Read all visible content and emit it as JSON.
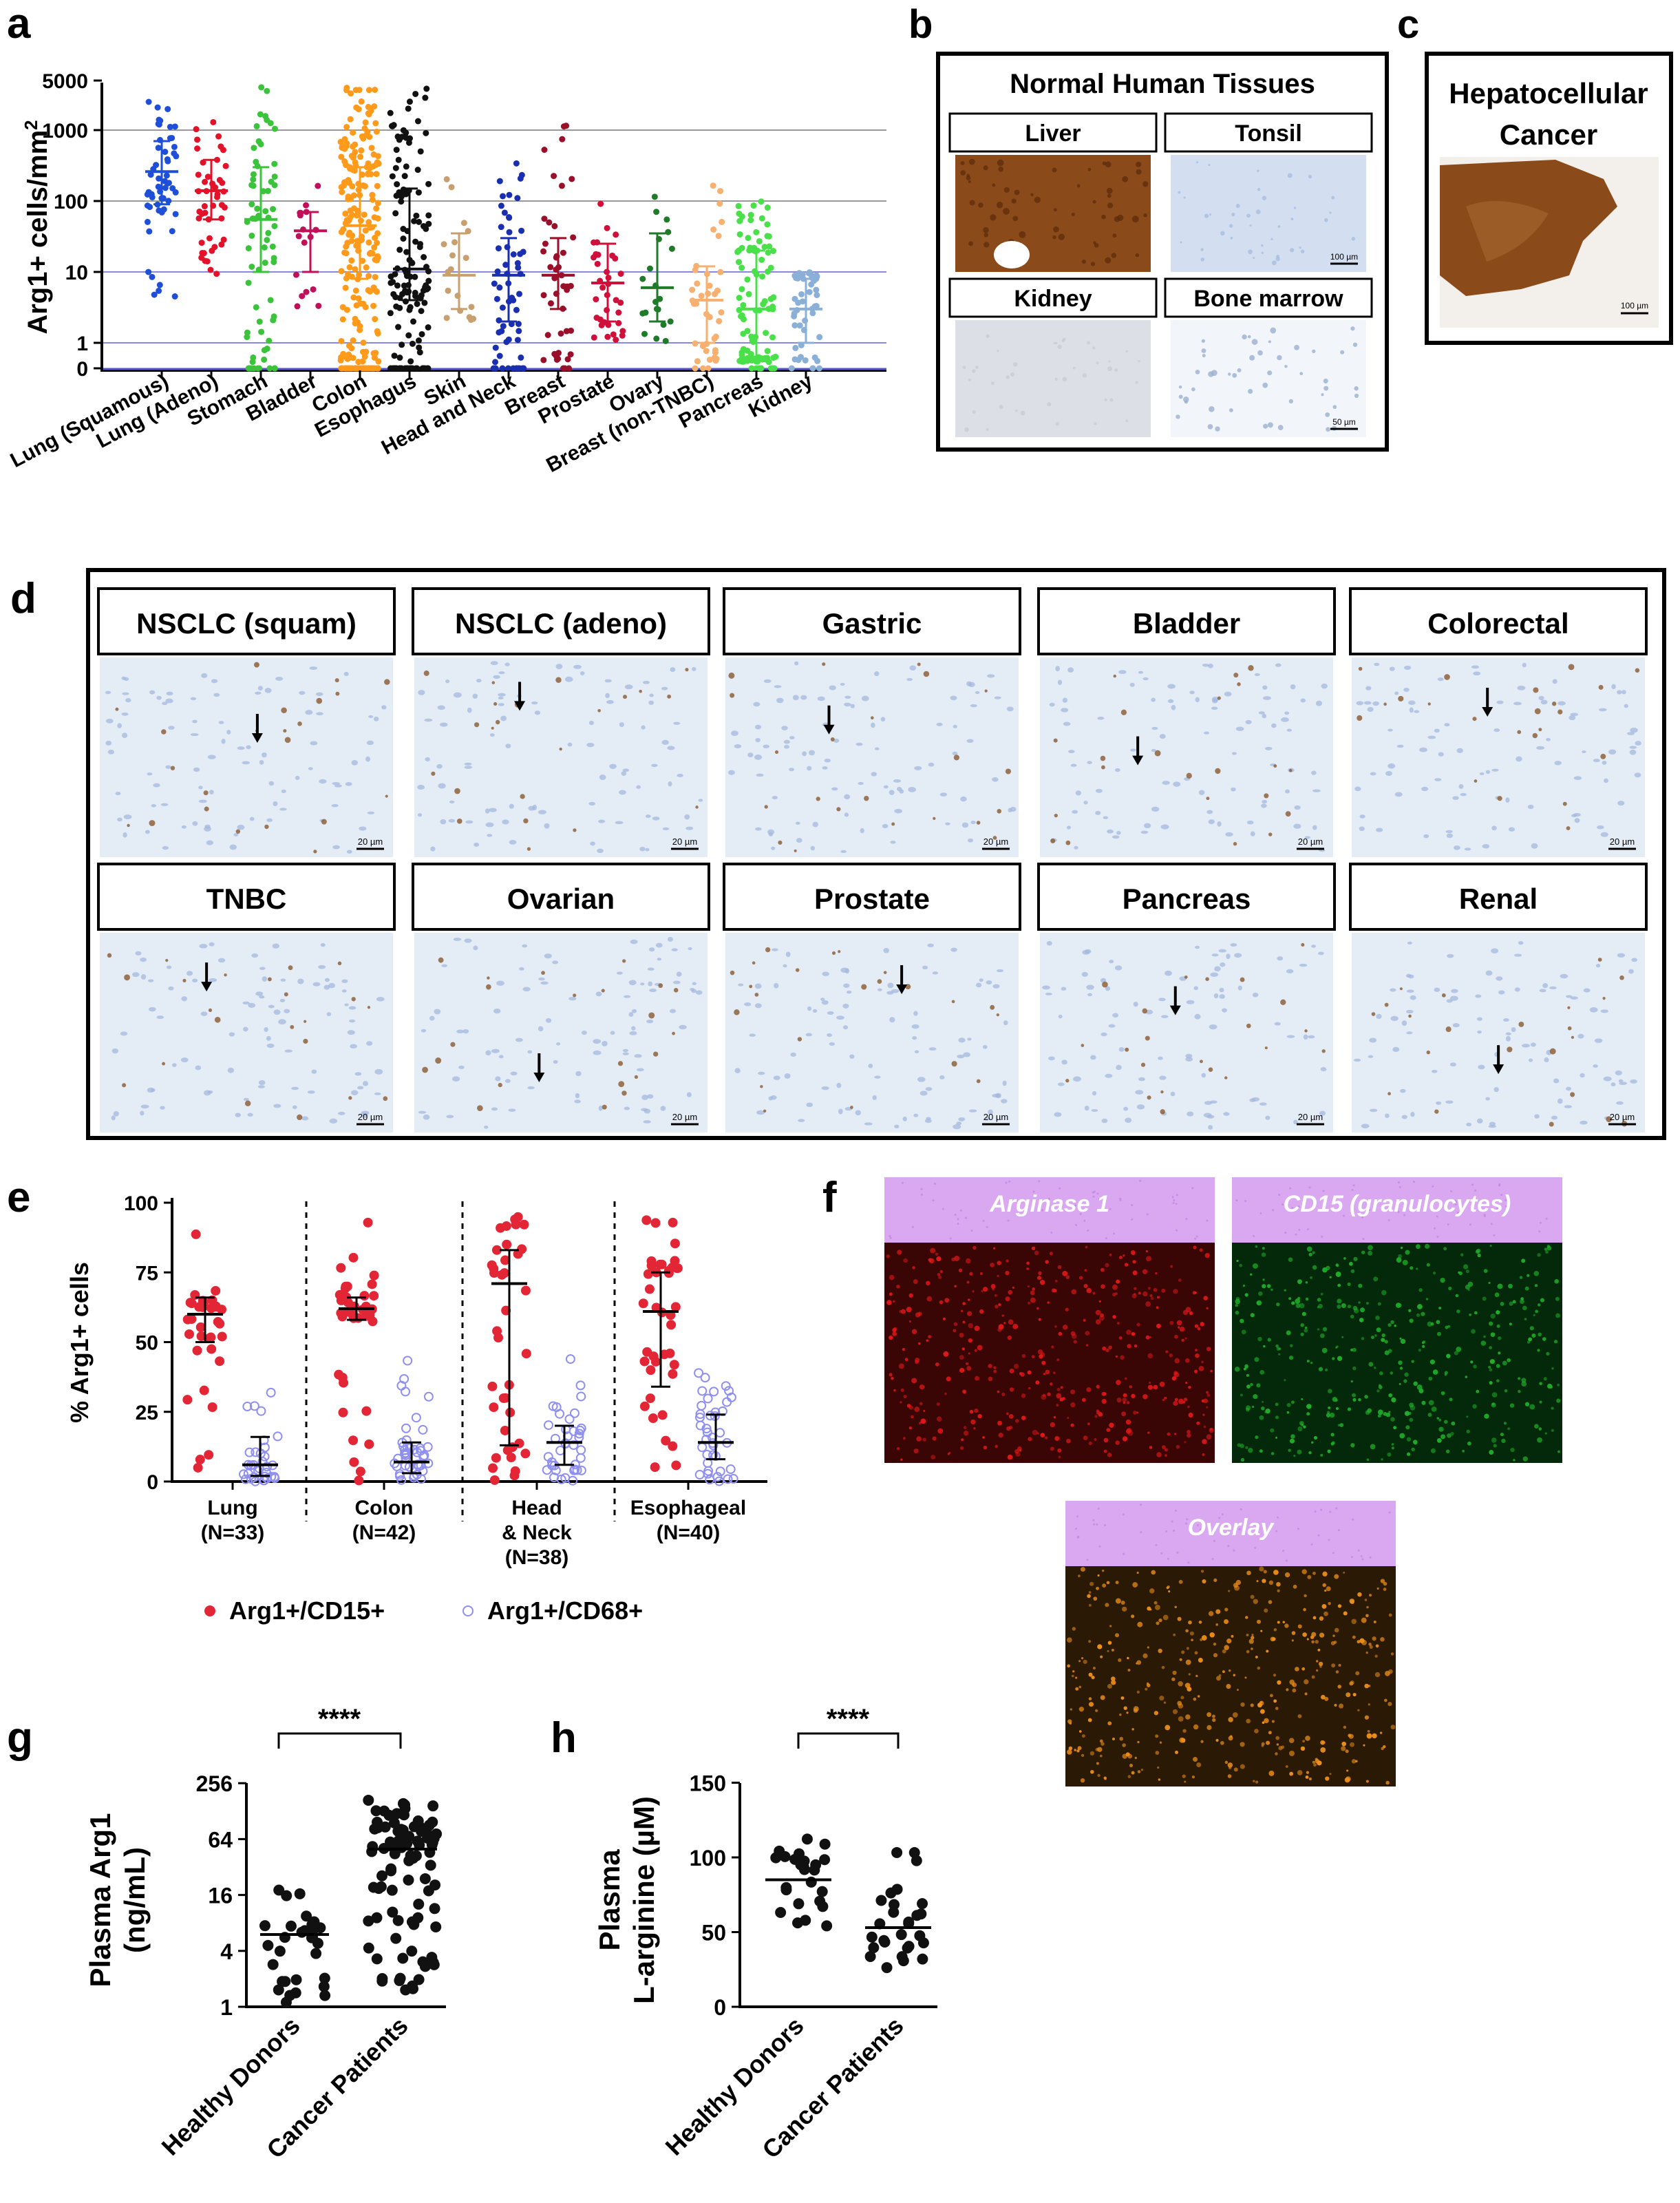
{
  "panel_letters": {
    "a": "a",
    "b": "b",
    "c": "c",
    "d": "d",
    "e": "e",
    "f": "f",
    "g": "g",
    "h": "h"
  },
  "panel_a": {
    "ylabel": "Arg1+ cells/mm",
    "ylabel_sup": "2",
    "yticks": [
      "5000",
      "1000",
      "100",
      "10",
      "1",
      "0"
    ],
    "categories": [
      "Lung (Squamous)",
      "Lung (Adeno)",
      "Stomach",
      "Bladder",
      "Colon",
      "Esophagus",
      "Skin",
      "Head and Neck",
      "Breast",
      "Prostate",
      "Ovary",
      "Breast (non-TNBC)",
      "Pancreas",
      "Kidney"
    ],
    "colors": [
      "#1f4fd8",
      "#e3122a",
      "#3cc33c",
      "#c0105a",
      "#ff9a1a",
      "#111111",
      "#c8a070",
      "#1a2fb0",
      "#9a0f2a",
      "#d0103a",
      "#1f7a2a",
      "#f7b070",
      "#49e049",
      "#8ab0d8"
    ]
  },
  "panel_b": {
    "title": "Normal Human Tissues",
    "tiles": [
      {
        "label": "Liver",
        "bg": "#8a4a1a",
        "scale": ""
      },
      {
        "label": "Tonsil",
        "bg": "#d3dff0",
        "scale": "100 µm"
      },
      {
        "label": "Kidney",
        "bg": "#dcdfe6",
        "scale": ""
      },
      {
        "label": "Bone marrow",
        "bg": "#f2f5fa",
        "scale": "50 µm"
      }
    ]
  },
  "panel_c": {
    "title_line1": "Hepatocellular",
    "title_line2": "Cancer",
    "scale": "100 µm"
  },
  "panel_d": {
    "tiles": [
      {
        "label": "NSCLC (squam)",
        "scale": "20 µm"
      },
      {
        "label": "NSCLC (adeno)",
        "scale": "20 µm"
      },
      {
        "label": "Gastric",
        "scale": "20 µm"
      },
      {
        "label": "Bladder",
        "scale": "20 µm"
      },
      {
        "label": "Colorectal",
        "scale": "20 µm"
      },
      {
        "label": "TNBC",
        "scale": "20 µm"
      },
      {
        "label": "Ovarian",
        "scale": "20 µm"
      },
      {
        "label": "Prostate",
        "scale": "20 µm"
      },
      {
        "label": "Pancreas",
        "scale": "20 µm"
      },
      {
        "label": "Renal",
        "scale": "20 µm"
      }
    ]
  },
  "panel_e": {
    "ylabel": "% Arg1+ cells",
    "yticks": [
      "100",
      "75",
      "50",
      "25",
      "0"
    ],
    "groups": [
      {
        "line1": "Lung",
        "line2": "(N=33)",
        "line3": ""
      },
      {
        "line1": "Colon",
        "line2": "(N=42)",
        "line3": ""
      },
      {
        "line1": "Head",
        "line2": "& Neck",
        "line3": "(N=38)"
      },
      {
        "line1": "Esophageal",
        "line2": "(N=40)",
        "line3": ""
      }
    ],
    "legend": [
      {
        "label": "Arg1+/CD15+",
        "color": "#e32636"
      },
      {
        "label": "Arg1+/CD68+",
        "color": "#8f8ff0"
      }
    ]
  },
  "panel_f": {
    "tiles": [
      {
        "label": "Arginase 1",
        "color": "#e01818"
      },
      {
        "label": "CD15 (granulocytes)",
        "color": "#1fb02a"
      },
      {
        "label": "Overlay",
        "color": "#f0901a"
      }
    ]
  },
  "panel_g": {
    "ylabel_line1": "Plasma Arg1",
    "ylabel_line2": "(ng/mL)",
    "yticks": [
      "256",
      "64",
      "16",
      "4",
      "1"
    ],
    "categories": [
      "Healthy Donors",
      "Cancer Patients"
    ],
    "significance": "****"
  },
  "panel_h": {
    "ylabel_line1": "Plasma",
    "ylabel_line2": "L-arginine (µM)",
    "yticks": [
      "150",
      "100",
      "50",
      "0"
    ],
    "categories": [
      "Healthy Donors",
      "Cancer Patients"
    ],
    "significance": "****"
  },
  "chart_data": [
    {
      "type": "scatter",
      "panel": "a",
      "ylabel": "Arg1+ cells/mm2",
      "yscale": "log",
      "ylim": [
        0,
        5000
      ],
      "categories": [
        "Lung (Squamous)",
        "Lung (Adeno)",
        "Stomach",
        "Bladder",
        "Colon",
        "Esophagus",
        "Skin",
        "Head and Neck",
        "Breast",
        "Prostate",
        "Ovary",
        "Breast (non-TNBC)",
        "Pancreas",
        "Kidney"
      ],
      "median": [
        260,
        140,
        55,
        38,
        45,
        11,
        9,
        9,
        9,
        7,
        6,
        4,
        3,
        3
      ],
      "q_low": [
        90,
        55,
        10,
        10,
        8,
        4,
        3,
        2,
        3,
        2,
        2,
        1,
        0.5,
        1
      ],
      "q_high": [
        700,
        380,
        300,
        70,
        300,
        150,
        35,
        30,
        30,
        25,
        35,
        12,
        20,
        8
      ],
      "min": [
        3,
        8,
        0,
        3,
        0,
        0,
        2,
        0,
        0,
        1,
        1,
        0,
        0,
        0
      ],
      "max": [
        3000,
        2500,
        4500,
        300,
        4000,
        4000,
        260,
        700,
        1800,
        100,
        250,
        200,
        100,
        10
      ],
      "n_points": [
        55,
        45,
        70,
        18,
        240,
        140,
        18,
        60,
        45,
        35,
        20,
        40,
        110,
        50
      ]
    },
    {
      "type": "scatter",
      "panel": "e",
      "ylabel": "% Arg1+ cells",
      "ylim": [
        0,
        100
      ],
      "categories": [
        "Lung (N=33)",
        "Colon (N=42)",
        "Head & Neck (N=38)",
        "Esophageal (N=40)"
      ],
      "series": [
        {
          "name": "Arg1+/CD15+",
          "median": [
            60,
            62,
            71,
            61
          ],
          "q_low": [
            50,
            58,
            13,
            34
          ],
          "q_high": [
            66,
            66,
            83,
            75
          ],
          "n": [
            33,
            42,
            38,
            40
          ]
        },
        {
          "name": "Arg1+/CD68+",
          "median": [
            6,
            7,
            14,
            14
          ],
          "q_low": [
            2,
            3,
            6,
            8
          ],
          "q_high": [
            16,
            14,
            20,
            24
          ],
          "n": [
            33,
            42,
            38,
            40
          ]
        }
      ]
    },
    {
      "type": "scatter",
      "panel": "g",
      "ylabel": "Plasma Arg1 (ng/mL)",
      "yscale": "log2",
      "ylim": [
        1,
        256
      ],
      "categories": [
        "Healthy Donors",
        "Cancer Patients"
      ],
      "median": [
        6,
        50
      ],
      "min": [
        1.1,
        1.5
      ],
      "max": [
        22,
        180
      ],
      "n_points": [
        30,
        90
      ],
      "significance": "****"
    },
    {
      "type": "scatter",
      "panel": "h",
      "ylabel": "Plasma L-arginine (µM)",
      "ylim": [
        0,
        150
      ],
      "categories": [
        "Healthy Donors",
        "Cancer Patients"
      ],
      "median": [
        85,
        53
      ],
      "min": [
        53,
        22
      ],
      "max": [
        128,
        105
      ],
      "n_points": [
        25,
        28
      ],
      "significance": "****"
    }
  ]
}
